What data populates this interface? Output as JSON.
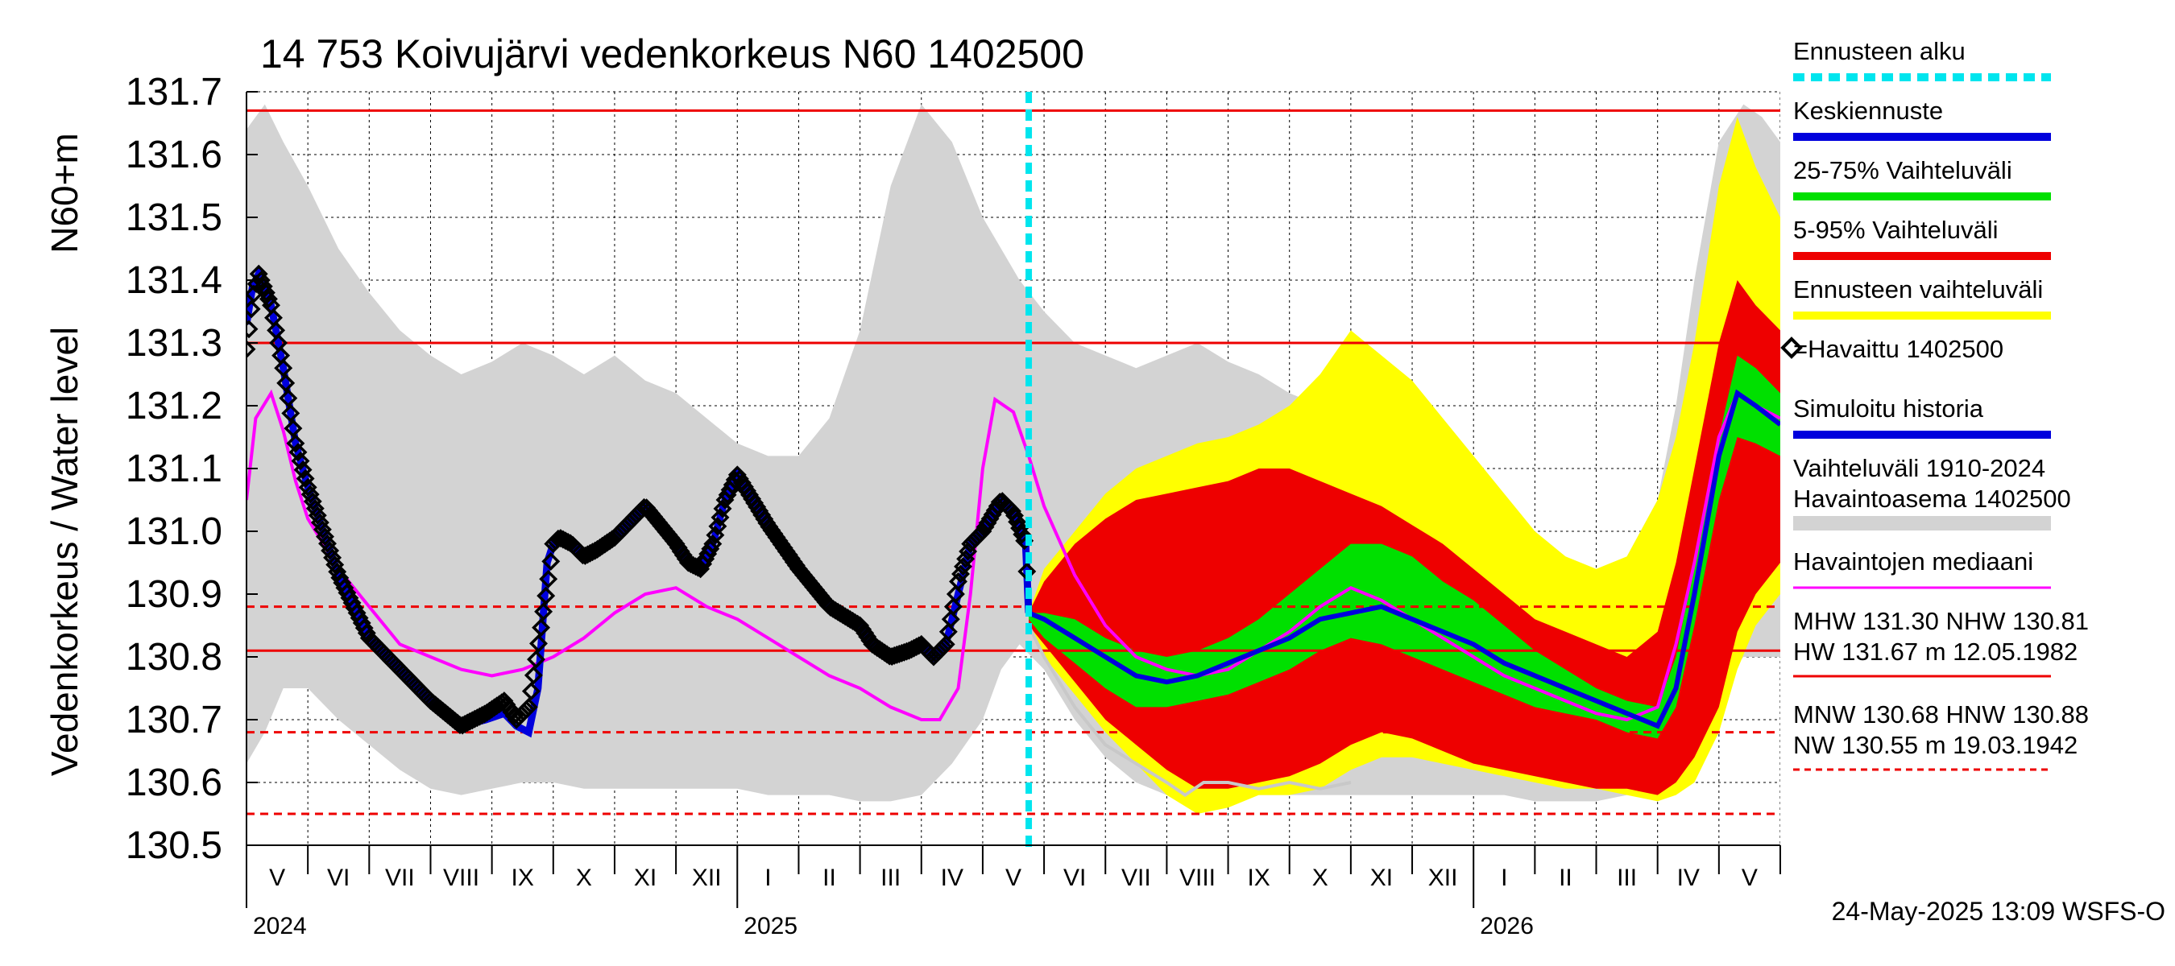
{
  "chart_data": {
    "type": "line",
    "title": "14 753 Koivujärvi vedenkorkeus N60 1402500",
    "ylabel_main": "Vedenkorkeus / Water level",
    "ylabel_unit": "N60+m",
    "ylim": [
      130.5,
      131.7
    ],
    "yticks": [
      {
        "v": 130.5,
        "label": "130.5"
      },
      {
        "v": 130.6,
        "label": "130.6"
      },
      {
        "v": 130.7,
        "label": "130.7"
      },
      {
        "v": 130.8,
        "label": "130.8"
      },
      {
        "v": 130.9,
        "label": "130.9"
      },
      {
        "v": 131.0,
        "label": "131.0"
      },
      {
        "v": 131.1,
        "label": "131.1"
      },
      {
        "v": 131.2,
        "label": "131.2"
      },
      {
        "v": 131.3,
        "label": "131.3"
      },
      {
        "v": 131.4,
        "label": "131.4"
      },
      {
        "v": 131.5,
        "label": "131.5"
      },
      {
        "v": 131.6,
        "label": "131.6"
      },
      {
        "v": 131.7,
        "label": "131.7"
      }
    ],
    "x_range_months": [
      0,
      25
    ],
    "months": [
      "V",
      "VI",
      "VII",
      "VIII",
      "IX",
      "X",
      "XI",
      "XII",
      "I",
      "II",
      "III",
      "IV",
      "V",
      "VI",
      "VII",
      "VIII",
      "IX",
      "X",
      "XI",
      "XII",
      "I",
      "II",
      "III",
      "IV",
      "V"
    ],
    "years": [
      {
        "label": "2024",
        "month_index": 0
      },
      {
        "label": "2025",
        "month_index": 8
      },
      {
        "label": "2026",
        "month_index": 20
      }
    ],
    "forecast_start_month": 12.75,
    "reference_lines": [
      {
        "name": "HW",
        "value": 131.67,
        "style": "solid"
      },
      {
        "name": "MHW",
        "value": 131.3,
        "style": "solid"
      },
      {
        "name": "NHW",
        "value": 130.81,
        "style": "solid"
      },
      {
        "name": "HNW",
        "value": 130.88,
        "style": "dashed"
      },
      {
        "name": "MNW",
        "value": 130.68,
        "style": "dashed"
      },
      {
        "name": "NW",
        "value": 130.55,
        "style": "dashed"
      }
    ],
    "historical_range": {
      "name": "Vaihteluväli 1910-2024 Havaintoasema 1402500",
      "x": [
        0,
        0.3,
        0.6,
        1,
        1.5,
        2,
        2.5,
        3,
        3.5,
        4,
        4.5,
        5,
        5.5,
        6,
        6.5,
        7,
        7.5,
        8,
        8.5,
        9,
        9.5,
        10,
        10.5,
        11,
        11.5,
        12,
        12.3,
        12.6,
        13,
        13.5,
        14,
        14.5,
        15,
        15.5,
        16,
        16.5,
        17,
        17.5,
        18,
        18.5,
        19,
        19.5,
        20,
        20.5,
        21,
        21.5,
        22,
        22.5,
        23,
        23.3,
        23.6,
        24,
        24.4,
        24.7,
        25
      ],
      "upper": [
        131.64,
        131.68,
        131.62,
        131.55,
        131.45,
        131.38,
        131.32,
        131.28,
        131.25,
        131.27,
        131.3,
        131.28,
        131.25,
        131.28,
        131.24,
        131.22,
        131.18,
        131.14,
        131.12,
        131.12,
        131.18,
        131.32,
        131.55,
        131.68,
        131.62,
        131.5,
        131.45,
        131.4,
        131.35,
        131.3,
        131.28,
        131.26,
        131.28,
        131.3,
        131.27,
        131.25,
        131.22,
        131.2,
        131.18,
        131.12,
        131.06,
        131.02,
        131.0,
        130.97,
        130.94,
        130.93,
        130.92,
        130.96,
        131.05,
        131.2,
        131.4,
        131.62,
        131.68,
        131.66,
        131.62
      ],
      "lower": [
        130.63,
        130.68,
        130.75,
        130.75,
        130.7,
        130.66,
        130.62,
        130.59,
        130.58,
        130.59,
        130.6,
        130.6,
        130.59,
        130.59,
        130.59,
        130.59,
        130.59,
        130.59,
        130.58,
        130.58,
        130.58,
        130.57,
        130.57,
        130.58,
        130.63,
        130.7,
        130.78,
        130.82,
        130.78,
        130.7,
        130.64,
        130.6,
        130.58,
        130.57,
        130.57,
        130.58,
        130.58,
        130.58,
        130.58,
        130.58,
        130.58,
        130.58,
        130.58,
        130.58,
        130.57,
        130.57,
        130.57,
        130.58,
        130.6,
        130.63,
        130.68,
        130.75,
        130.8,
        130.8,
        130.8
      ]
    },
    "forecast_bands": {
      "x": [
        12.75,
        13,
        13.5,
        14,
        14.5,
        15,
        15.5,
        16,
        16.5,
        17,
        17.5,
        18,
        18.5,
        19,
        19.5,
        20,
        20.5,
        21,
        21.5,
        22,
        22.5,
        23,
        23.3,
        23.6,
        24,
        24.3,
        24.6,
        25
      ],
      "range_upper": [
        130.87,
        130.94,
        131.0,
        131.06,
        131.1,
        131.12,
        131.14,
        131.15,
        131.17,
        131.2,
        131.25,
        131.32,
        131.28,
        131.24,
        131.18,
        131.12,
        131.06,
        131.0,
        130.96,
        130.94,
        130.96,
        131.05,
        131.15,
        131.3,
        131.55,
        131.66,
        131.58,
        131.5
      ],
      "range_lower": [
        130.85,
        130.8,
        130.74,
        130.68,
        130.63,
        130.58,
        130.55,
        130.56,
        130.58,
        130.58,
        130.59,
        130.62,
        130.64,
        130.64,
        130.63,
        130.62,
        130.61,
        130.6,
        130.59,
        130.59,
        130.58,
        130.57,
        130.58,
        130.6,
        130.68,
        130.78,
        130.85,
        130.9
      ],
      "p95": [
        130.87,
        130.92,
        130.98,
        131.02,
        131.05,
        131.06,
        131.07,
        131.08,
        131.1,
        131.1,
        131.08,
        131.06,
        131.04,
        131.01,
        130.98,
        130.94,
        130.9,
        130.86,
        130.84,
        130.82,
        130.8,
        130.84,
        130.95,
        131.1,
        131.3,
        131.4,
        131.36,
        131.32
      ],
      "p5": [
        130.85,
        130.82,
        130.76,
        130.7,
        130.66,
        130.62,
        130.59,
        130.59,
        130.6,
        130.61,
        130.63,
        130.66,
        130.68,
        130.67,
        130.65,
        130.63,
        130.62,
        130.61,
        130.6,
        130.59,
        130.59,
        130.58,
        130.6,
        130.64,
        130.72,
        130.84,
        130.9,
        130.95
      ],
      "p75": [
        130.87,
        130.87,
        130.86,
        130.83,
        130.81,
        130.8,
        130.81,
        130.83,
        130.86,
        130.9,
        130.94,
        130.98,
        130.98,
        130.96,
        130.92,
        130.89,
        130.85,
        130.81,
        130.78,
        130.75,
        130.73,
        130.72,
        130.8,
        130.95,
        131.15,
        131.28,
        131.26,
        131.22
      ],
      "p25": [
        130.86,
        130.83,
        130.79,
        130.75,
        130.72,
        130.72,
        130.73,
        130.74,
        130.76,
        130.78,
        130.81,
        130.83,
        130.82,
        130.8,
        130.78,
        130.76,
        130.74,
        130.72,
        130.71,
        130.7,
        130.68,
        130.67,
        130.72,
        130.85,
        131.05,
        131.15,
        131.14,
        131.12
      ],
      "median": [
        130.87,
        130.86,
        130.83,
        130.8,
        130.77,
        130.76,
        130.77,
        130.79,
        130.81,
        130.83,
        130.86,
        130.87,
        130.88,
        130.86,
        130.84,
        130.82,
        130.79,
        130.77,
        130.75,
        130.73,
        130.71,
        130.69,
        130.75,
        130.9,
        131.12,
        131.22,
        131.2,
        131.17
      ]
    },
    "observed": {
      "name": "=Havaittu 1402500",
      "x": [
        0,
        0.1,
        0.2,
        0.4,
        0.6,
        0.8,
        1,
        1.5,
        2,
        2.5,
        3,
        3.5,
        3.9,
        4.2,
        4.4,
        4.6,
        4.9,
        5.0,
        5.1,
        5.3,
        5.5,
        5.7,
        6,
        6.5,
        7,
        7.2,
        7.4,
        7.6,
        7.8,
        8,
        8.5,
        9,
        9.5,
        10,
        10.2,
        10.5,
        10.8,
        11,
        11.2,
        11.4,
        11.6,
        11.8,
        12,
        12.3,
        12.5,
        12.7,
        12.75
      ],
      "y": [
        131.29,
        131.37,
        131.41,
        131.36,
        131.26,
        131.14,
        131.07,
        130.93,
        130.83,
        130.78,
        130.73,
        130.69,
        130.71,
        130.73,
        130.7,
        130.72,
        130.91,
        130.98,
        130.99,
        130.98,
        130.96,
        130.97,
        130.99,
        131.04,
        130.98,
        130.95,
        130.94,
        130.98,
        131.05,
        131.09,
        131.01,
        130.94,
        130.88,
        130.85,
        130.82,
        130.8,
        130.81,
        130.82,
        130.8,
        130.82,
        130.92,
        130.98,
        131.0,
        131.05,
        131.03,
        130.98,
        130.87
      ]
    },
    "simulated": {
      "name": "Simuloitu historia",
      "x": [
        0,
        0.1,
        0.2,
        0.4,
        0.6,
        0.8,
        1,
        1.5,
        2,
        2.5,
        3,
        3.5,
        3.9,
        4.2,
        4.4,
        4.6,
        4.75,
        4.9,
        5.0,
        5.1,
        5.3,
        5.5,
        5.7,
        6,
        6.5,
        7,
        7.2,
        7.4,
        7.6,
        7.8,
        8,
        8.5,
        9,
        9.5,
        10,
        10.2,
        10.5,
        10.8,
        11,
        11.2,
        11.4,
        11.6,
        11.8,
        12,
        12.3,
        12.5,
        12.7,
        12.75
      ],
      "y": [
        131.33,
        131.39,
        131.41,
        131.36,
        131.26,
        131.14,
        131.07,
        130.93,
        130.83,
        130.78,
        130.73,
        130.69,
        130.7,
        130.71,
        130.69,
        130.68,
        130.75,
        130.95,
        130.98,
        130.99,
        130.98,
        130.96,
        130.97,
        130.99,
        131.04,
        130.98,
        130.95,
        130.94,
        130.98,
        131.05,
        131.09,
        131.01,
        130.94,
        130.88,
        130.85,
        130.82,
        130.8,
        130.81,
        130.82,
        130.8,
        130.82,
        130.9,
        130.98,
        131.0,
        131.05,
        131.03,
        130.98,
        130.87
      ]
    },
    "median_observations": {
      "name": "Havaintojen mediaani",
      "x": [
        0,
        0.15,
        0.4,
        0.6,
        0.8,
        1,
        1.5,
        2,
        2.5,
        3,
        3.5,
        4,
        4.5,
        5,
        5.5,
        6,
        6.5,
        7,
        7.5,
        8,
        8.5,
        9,
        9.5,
        10,
        10.5,
        11,
        11.3,
        11.6,
        11.8,
        12,
        12.2,
        12.5,
        12.75,
        13,
        13.5,
        14,
        14.5,
        15,
        15.5,
        16,
        16.5,
        17,
        17.5,
        18,
        18.5,
        19,
        19.5,
        20,
        20.5,
        21,
        21.5,
        22,
        22.5,
        23,
        23.3,
        23.6,
        24,
        24.3,
        24.6,
        25
      ],
      "y": [
        131.05,
        131.18,
        131.22,
        131.16,
        131.08,
        131.02,
        130.94,
        130.88,
        130.82,
        130.8,
        130.78,
        130.77,
        130.78,
        130.8,
        130.83,
        130.87,
        130.9,
        130.91,
        130.88,
        130.86,
        130.83,
        130.8,
        130.77,
        130.75,
        130.72,
        130.7,
        130.7,
        130.75,
        130.9,
        131.1,
        131.21,
        131.19,
        131.12,
        131.04,
        130.93,
        130.85,
        130.8,
        130.78,
        130.77,
        130.78,
        130.81,
        130.84,
        130.88,
        130.91,
        130.89,
        130.86,
        130.83,
        130.8,
        130.77,
        130.75,
        130.73,
        130.71,
        130.7,
        130.72,
        130.82,
        130.95,
        131.15,
        131.22,
        131.2,
        131.18
      ]
    },
    "observed_tail": {
      "x": [
        12.75,
        13,
        13.5,
        14,
        14.5,
        15,
        15.3,
        15.6,
        16,
        16.5,
        17,
        17.5,
        18
      ],
      "y": [
        130.85,
        130.8,
        130.72,
        130.66,
        130.63,
        130.6,
        130.58,
        130.6,
        130.6,
        130.59,
        130.6,
        130.59,
        130.6
      ]
    },
    "legend": [
      {
        "key": "forecast_start",
        "label": "Ennusteen alku",
        "color": "#00e5ee",
        "style": "dashed"
      },
      {
        "key": "mean_forecast",
        "label": "Keskiennuste",
        "color": "#0000dd",
        "style": "solid"
      },
      {
        "key": "p25_75",
        "label": "25-75% Vaihteluväli",
        "color": "#00e000",
        "style": "solid"
      },
      {
        "key": "p5_95",
        "label": "5-95% Vaihteluväli",
        "color": "#ee0000",
        "style": "solid"
      },
      {
        "key": "forecast_range",
        "label": "Ennusteen vaihteluväli",
        "color": "#ffff00",
        "style": "solid"
      },
      {
        "key": "observed",
        "label": "=Havaittu 1402500",
        "color": "#000000",
        "style": "marker"
      },
      {
        "key": "simulated",
        "label": "Simuloitu historia",
        "color": "#0000dd",
        "style": "solid"
      },
      {
        "key": "hist_range",
        "label": "Vaihteluväli 1910-2024",
        "label2": " Havaintoasema 1402500",
        "color": "#d3d3d3",
        "style": "solid"
      },
      {
        "key": "median",
        "label": "Havaintojen mediaani",
        "color": "#ff00ff",
        "style": "solid"
      },
      {
        "key": "mhw",
        "label": "MHW 131.30 NHW 130.81",
        "label2": "HW 131.67 m 12.05.1982",
        "color": "#ee0000",
        "style": "solid"
      },
      {
        "key": "mnw",
        "label": "MNW 130.68 HNW 130.88",
        "label2": "NW 130.55 m 19.03.1942",
        "color": "#ee0000",
        "style": "dashed"
      }
    ],
    "footer": "24-May-2025 13:09 WSFS-O",
    "colors": {
      "gray": "#d3d3d3",
      "yellow": "#ffff00",
      "red": "#ee0000",
      "green": "#00e000",
      "blue": "#0000dd",
      "magenta": "#ff00ff",
      "cyan": "#00e5ee",
      "black": "#000000",
      "tail": "#c8c8c8"
    }
  }
}
